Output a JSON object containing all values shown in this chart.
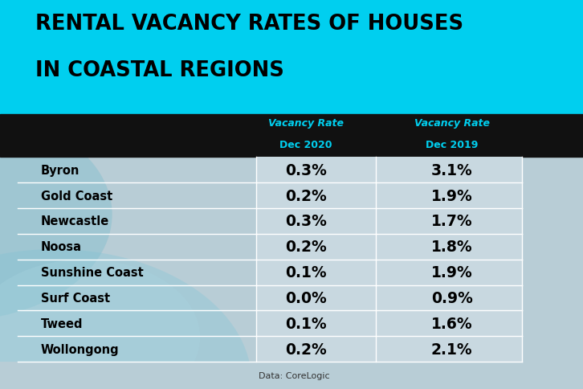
{
  "title_line1": "RENTAL VACANCY RATES OF HOUSES",
  "title_line2": "IN COASTAL REGIONS",
  "title_bg_color": "#00CFEF",
  "title_text_color": "#000000",
  "header_bg_color": "#111111",
  "header_text_color": "#00CFEF",
  "col1_header_line1": "Vacancy Rate",
  "col1_header_line2": "Dec 2020",
  "col2_header_line1": "Vacancy Rate",
  "col2_header_line2": "Dec 2019",
  "table_bg_color": "#B8CDD6",
  "cell_bg_color": "#C8D8E0",
  "cell_border_color": "#A0B8C4",
  "row_text_color": "#000000",
  "data_text_color": "#000000",
  "source_text": "Data: CoreLogic",
  "source_text_color": "#333333",
  "regions": [
    "Byron",
    "Gold Coast",
    "Newcastle",
    "Noosa",
    "Sunshine Coast",
    "Surf Coast",
    "Tweed",
    "Wollongong"
  ],
  "dec2020": [
    "0.3%",
    "0.2%",
    "0.3%",
    "0.2%",
    "0.1%",
    "0.0%",
    "0.1%",
    "0.2%"
  ],
  "dec2019": [
    "3.1%",
    "1.9%",
    "1.7%",
    "1.8%",
    "1.9%",
    "0.9%",
    "1.6%",
    "2.1%"
  ],
  "wave_color1": "#7BBCCC",
  "wave_color2": "#8EC8D8",
  "fig_width": 7.26,
  "fig_height": 4.85,
  "dpi": 100
}
